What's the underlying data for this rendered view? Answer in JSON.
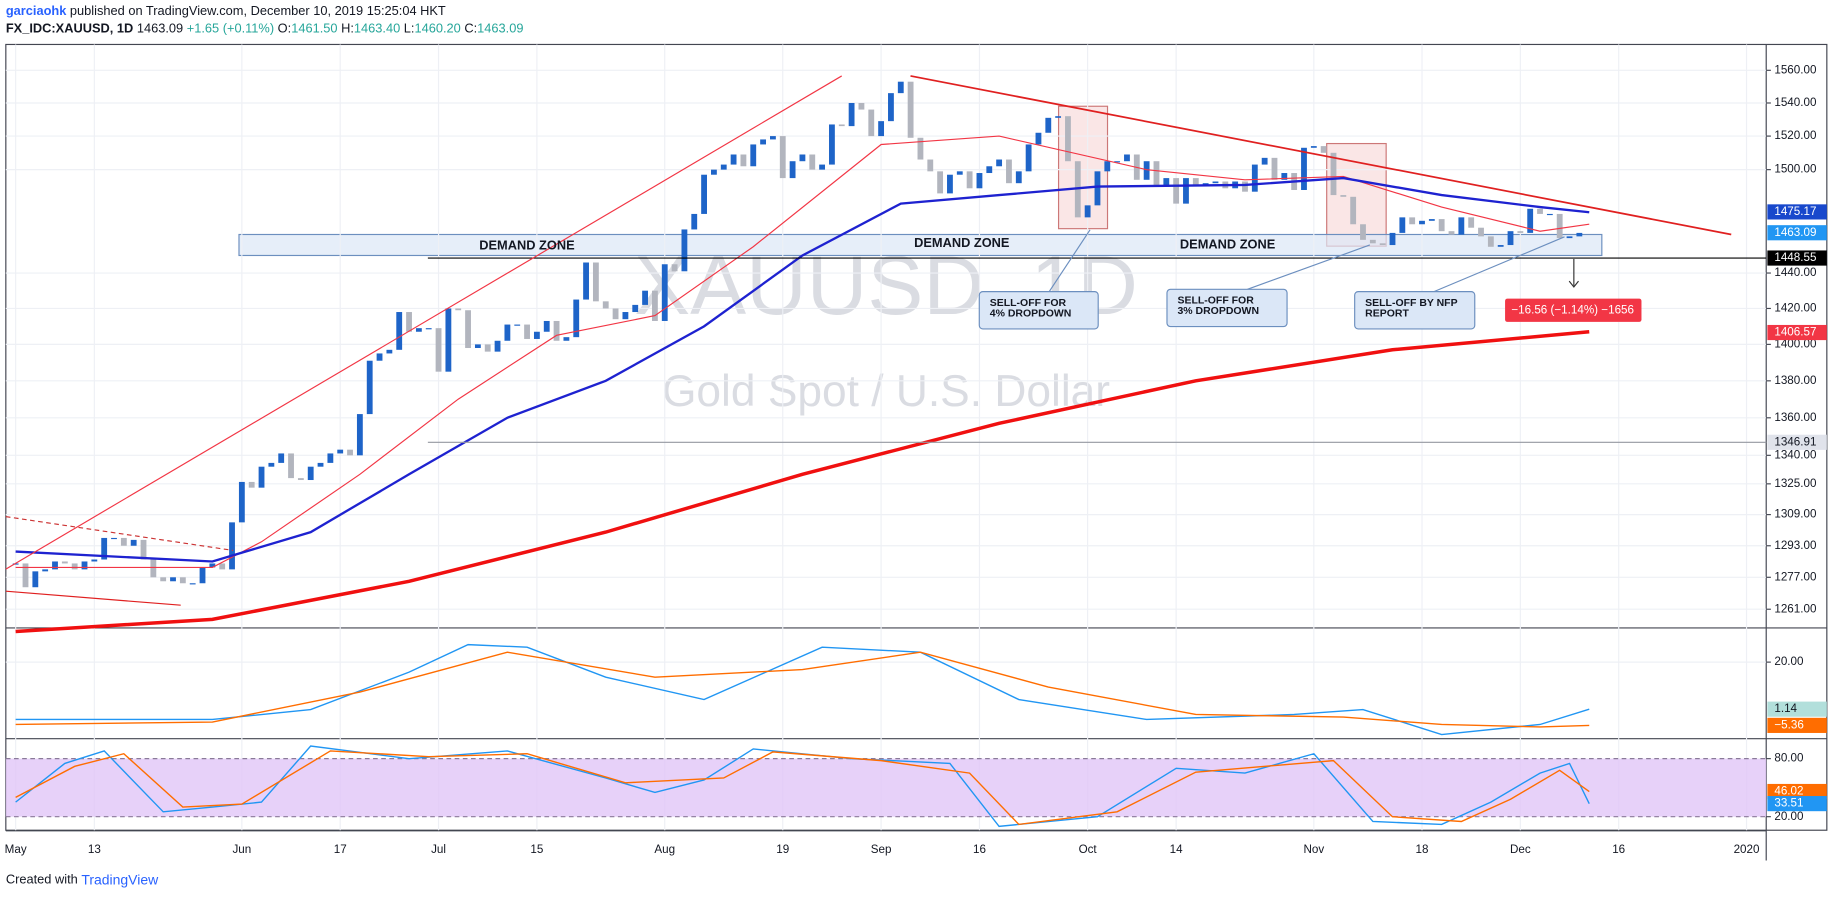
{
  "header": {
    "author": "garciaohk",
    "published": "published on TradingView.com, December 10, 2019 15:25:04 HKT",
    "symbol": "FX_IDC:XAUUSD, 1D",
    "last": "1463.09",
    "change": "+1.65 (+0.11%)",
    "ohlc": [
      {
        "label": "O:",
        "value": "1461.50"
      },
      {
        "label": "H:",
        "value": "1463.40"
      },
      {
        "label": "L:",
        "value": "1460.20"
      },
      {
        "label": "C:",
        "value": "1463.09"
      }
    ]
  },
  "footer": {
    "created": "Created with",
    "brand": "TradingView"
  },
  "chart_data": [
    {
      "type": "candlestick",
      "watermark": "XAUUSD, 1D",
      "subtitle": "Gold Spot / U.S. Dollar",
      "log_scale": true,
      "grid": true,
      "up_color": "#1e64c8",
      "down_color": "#b2b5be",
      "xticks": [
        {
          "value": 0,
          "label": "May"
        },
        {
          "value": 8,
          "label": "13"
        },
        {
          "value": 23,
          "label": "Jun"
        },
        {
          "value": 33,
          "label": "17"
        },
        {
          "value": 43,
          "label": "Jul"
        },
        {
          "value": 53,
          "label": "15"
        },
        {
          "value": 66,
          "label": "Aug"
        },
        {
          "value": 78,
          "label": "19"
        },
        {
          "value": 88,
          "label": "Sep"
        },
        {
          "value": 98,
          "label": "16"
        },
        {
          "value": 109,
          "label": "Oct"
        },
        {
          "value": 118,
          "label": "14"
        },
        {
          "value": 132,
          "label": "Nov"
        },
        {
          "value": 143,
          "label": "18"
        },
        {
          "value": 153,
          "label": "Dec"
        },
        {
          "value": 163,
          "label": "16"
        },
        {
          "value": 176,
          "label": "2020"
        }
      ],
      "xlim": [
        -1,
        178
      ],
      "values": [
        1284,
        1272,
        1280,
        1281,
        1285,
        1284,
        1281,
        1285,
        1286,
        1297,
        1297,
        1293,
        1296,
        1286,
        1277,
        1275,
        1277,
        1274,
        1274,
        1282,
        1284,
        1281,
        1305,
        1326,
        1323,
        1334,
        1336,
        1341,
        1328,
        1327,
        1334,
        1336,
        1341,
        1343,
        1340,
        1362,
        1391,
        1395,
        1397,
        1418,
        1407,
        1409,
        1409,
        1385,
        1420,
        1419,
        1398,
        1400,
        1396,
        1402,
        1411,
        1411,
        1403,
        1407,
        1413,
        1402,
        1404,
        1425,
        1446,
        1424,
        1420,
        1414,
        1418,
        1422,
        1430,
        1413,
        1445,
        1441,
        1465,
        1474,
        1497,
        1500,
        1503,
        1509,
        1502,
        1515,
        1518,
        1520,
        1495,
        1505,
        1509,
        1500,
        1503,
        1527,
        1526,
        1540,
        1536,
        1520,
        1529,
        1546,
        1553,
        1519,
        1506,
        1499,
        1486,
        1497,
        1499,
        1489,
        1498,
        1502,
        1506,
        1492,
        1499,
        1515,
        1522,
        1531,
        1532,
        1505,
        1472,
        1479,
        1499,
        1505,
        1505,
        1509,
        1494,
        1505,
        1490,
        1495,
        1480,
        1495,
        1491,
        1492,
        1493,
        1489,
        1493,
        1487,
        1503,
        1507,
        1494,
        1498,
        1488,
        1513,
        1514,
        1510,
        1485,
        1484,
        1468,
        1459,
        1457,
        1456,
        1463,
        1472,
        1468,
        1470,
        1471,
        1464,
        1462,
        1472,
        1466,
        1461,
        1455,
        1456,
        1464,
        1463,
        1477,
        1474,
        1474,
        1460,
        1461,
        1463
      ],
      "ylim": [
        1252,
        1576
      ],
      "yticks": [
        {
          "value": 1261,
          "label": "1261.00"
        },
        {
          "value": 1277,
          "label": "1277.00"
        },
        {
          "value": 1293,
          "label": "1293.00"
        },
        {
          "value": 1309,
          "label": "1309.00"
        },
        {
          "value": 1325,
          "label": "1325.00"
        },
        {
          "value": 1340,
          "label": "1340.00"
        },
        {
          "value": 1360,
          "label": "1360.00"
        },
        {
          "value": 1380,
          "label": "1380.00"
        },
        {
          "value": 1400,
          "label": "1400.00"
        },
        {
          "value": 1420,
          "label": "1420.00"
        },
        {
          "value": 1440,
          "label": "1440.00"
        },
        {
          "value": 1500,
          "label": "1500.00"
        },
        {
          "value": 1520,
          "label": "1520.00"
        },
        {
          "value": 1540,
          "label": "1540.00"
        },
        {
          "value": 1560,
          "label": "1560.00"
        }
      ],
      "overlays": [
        {
          "color": "#f23645",
          "width": 1,
          "x": [
            0,
            20,
            25,
            35,
            45,
            55,
            65,
            75,
            88,
            100,
            115,
            125,
            135,
            145,
            155,
            160
          ],
          "values": [
            1282,
            1282,
            1295,
            1330,
            1370,
            1405,
            1416,
            1455,
            1515,
            1520,
            1500,
            1494,
            1496,
            1478,
            1464,
            1468
          ]
        },
        {
          "color": "#1e22d0",
          "width": 2,
          "x": [
            0,
            20,
            30,
            40,
            50,
            60,
            70,
            80,
            90,
            100,
            110,
            125,
            135,
            145,
            155,
            160
          ],
          "values": [
            1290,
            1285,
            1300,
            1330,
            1360,
            1380,
            1410,
            1450,
            1480,
            1485,
            1490,
            1491,
            1495,
            1485,
            1478,
            1475
          ]
        },
        {
          "color": "#f01010",
          "width": 3,
          "x": [
            0,
            20,
            40,
            60,
            80,
            100,
            120,
            140,
            160
          ],
          "values": [
            1250,
            1256,
            1275,
            1300,
            1330,
            1357,
            1380,
            1397,
            1407
          ]
        }
      ],
      "price_labels": [
        {
          "value": 1475.17,
          "color": "#1848cc",
          "text_color": "#ffffff"
        },
        {
          "value": 1463.09,
          "color": "#2196f3",
          "text_color": "#ffffff"
        },
        {
          "value": 1448.55,
          "color": "#000000",
          "text_color": "#ffffff",
          "line": true
        },
        {
          "value": 1406.57,
          "color": "#f23645",
          "text_color": "#ffffff"
        },
        {
          "value": 1346.91,
          "color": "#e0e3eb",
          "text_color": "#131722",
          "line": true
        }
      ],
      "annotations": {
        "zones": [
          "DEMAND ZONE",
          "DEMAND ZONE",
          "DEMAND ZONE"
        ],
        "callouts": [
          [
            "SELL-OFF FOR",
            "4% DROPDOWN"
          ],
          [
            "SELL-OFF FOR",
            "3% DROPDOWN"
          ],
          [
            "SELL-OFF BY NFP",
            "REPORT"
          ]
        ],
        "measure": "−16.56 (−1.14%) −1656"
      }
    },
    {
      "type": "line",
      "xlim": [
        -1,
        178
      ],
      "ylim": [
        -10,
        33
      ],
      "yticks": [
        {
          "value": 20,
          "label": "20.00"
        }
      ],
      "series": [
        {
          "color": "#2196f3",
          "x": [
            0,
            20,
            30,
            40,
            46,
            52,
            60,
            70,
            82,
            92,
            102,
            115,
            130,
            137,
            145,
            155,
            160
          ],
          "values": [
            -3,
            -3,
            1,
            16,
            27,
            26,
            14,
            5,
            26,
            24,
            5,
            -3,
            -1,
            1,
            -9,
            -5,
            1.14
          ]
        },
        {
          "color": "#ff6d00",
          "x": [
            0,
            20,
            35,
            50,
            65,
            80,
            92,
            105,
            120,
            135,
            145,
            155,
            160
          ],
          "values": [
            -5,
            -4,
            8,
            24,
            14,
            17,
            24,
            10,
            -1,
            -2,
            -5,
            -6,
            -5.36
          ]
        }
      ],
      "price_labels": [
        {
          "value": 1.14,
          "color": "#b2dfdb",
          "text_color": "#131722"
        },
        {
          "value": -5.36,
          "label": "−5.36",
          "color": "#ff6d00",
          "text_color": "#ffffff"
        }
      ]
    },
    {
      "type": "line",
      "xlim": [
        -1,
        178
      ],
      "ylim": [
        6,
        100
      ],
      "band_color": "#e1c6f7",
      "yticks": [
        {
          "value": 20,
          "label": "20.00"
        },
        {
          "value": 80,
          "label": "80.00"
        }
      ],
      "series": [
        {
          "color": "#2196f3",
          "x": [
            0,
            5,
            9,
            15,
            20,
            25,
            30,
            40,
            50,
            60,
            65,
            70,
            75,
            85,
            95,
            100,
            110,
            118,
            125,
            132,
            138,
            145,
            150,
            155,
            158,
            160
          ],
          "values": [
            35,
            75,
            88,
            25,
            30,
            35,
            93,
            80,
            88,
            60,
            45,
            58,
            90,
            80,
            75,
            10,
            20,
            70,
            65,
            85,
            15,
            12,
            35,
            65,
            75,
            33.51
          ]
        },
        {
          "color": "#ff6d00",
          "x": [
            0,
            6,
            11,
            17,
            23,
            32,
            42,
            52,
            62,
            72,
            77,
            88,
            97,
            102,
            112,
            120,
            134,
            140,
            147,
            152,
            157,
            160
          ],
          "values": [
            40,
            72,
            85,
            30,
            33,
            88,
            82,
            85,
            55,
            60,
            87,
            78,
            65,
            12,
            25,
            66,
            78,
            20,
            15,
            38,
            68,
            46.02
          ]
        }
      ],
      "price_labels": [
        {
          "value": 46.02,
          "color": "#ff6d00",
          "text_color": "#ffffff"
        },
        {
          "value": 33.51,
          "color": "#2196f3",
          "text_color": "#ffffff"
        }
      ]
    }
  ]
}
